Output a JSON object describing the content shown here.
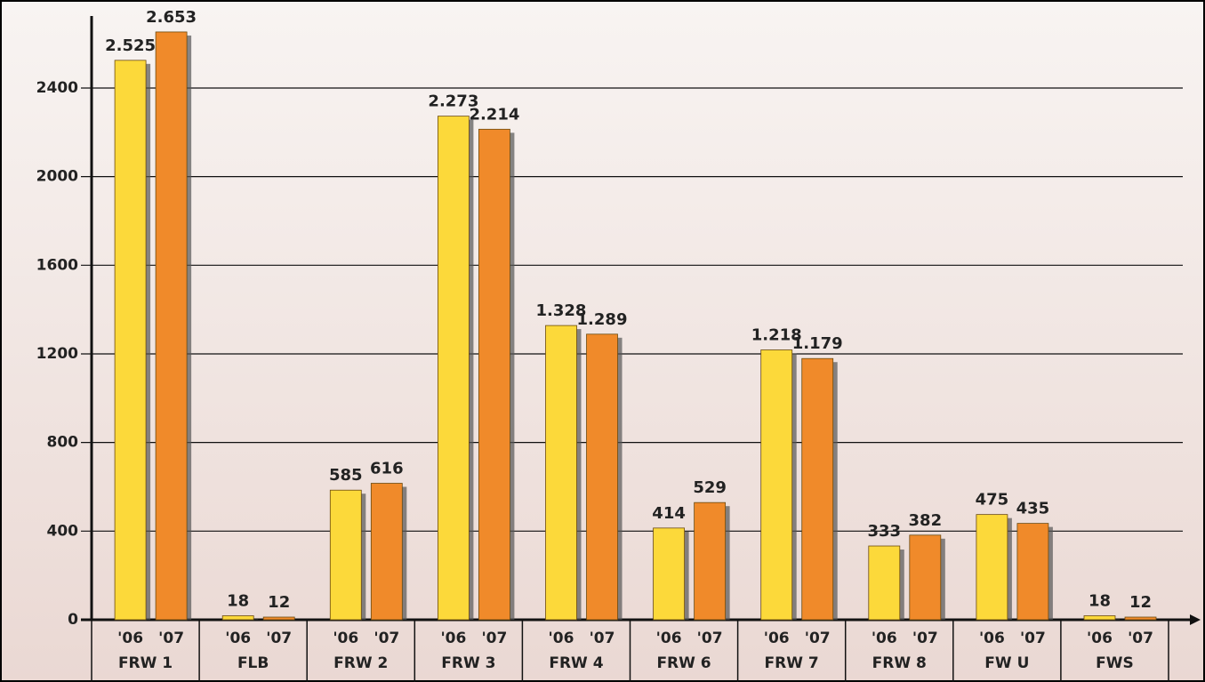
{
  "chart_data": {
    "type": "bar",
    "categories": [
      "FRW 1",
      "FLB",
      "FRW 2",
      "FRW 3",
      "FRW 4",
      "FRW 6",
      "FRW 7",
      "FRW 8",
      "FW U",
      "FWS"
    ],
    "series": [
      {
        "name": "'06",
        "color": "#fcd93a",
        "values": [
          2525,
          18,
          585,
          2273,
          1328,
          414,
          1218,
          333,
          475,
          18
        ],
        "value_labels": [
          "2.525",
          "18",
          "585",
          "2.273",
          "1.328",
          "414",
          "1.218",
          "333",
          "475",
          "18"
        ]
      },
      {
        "name": "'07",
        "color": "#f08a2a",
        "values": [
          2653,
          12,
          616,
          2214,
          1289,
          529,
          1179,
          382,
          435,
          12
        ],
        "value_labels": [
          "2.653",
          "12",
          "616",
          "2.214",
          "1.289",
          "529",
          "1.179",
          "382",
          "435",
          "12"
        ]
      }
    ],
    "ylim": [
      0,
      2725
    ],
    "yticks": [
      0,
      400,
      800,
      1200,
      1600,
      2000,
      2400
    ],
    "grid": true
  }
}
